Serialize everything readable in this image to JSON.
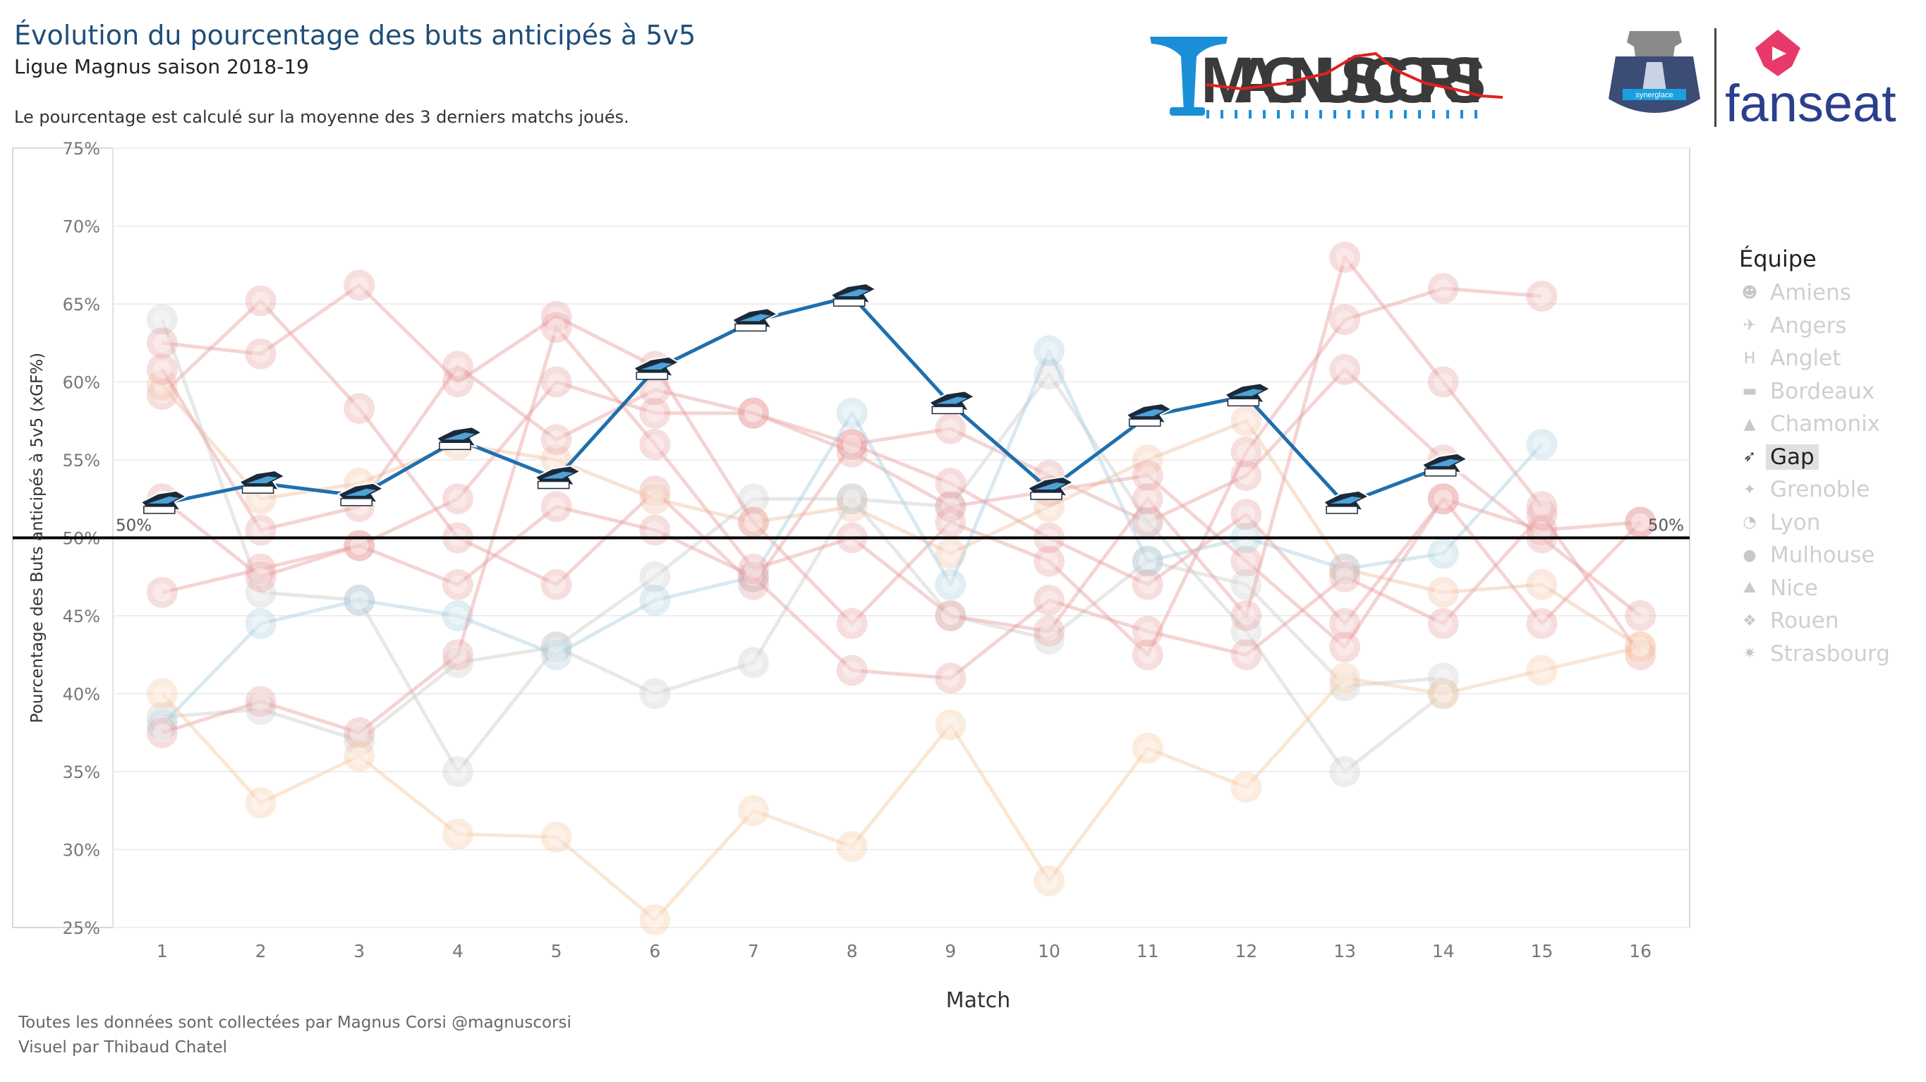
{
  "header": {
    "title": "Évolution du pourcentage des buts anticipés à 5v5",
    "subtitle": "Ligue Magnus saison 2018-19",
    "description": "Le pourcentage est calculé sur la moyenne des 3 derniers matchs joués."
  },
  "footer": {
    "line1": "Toutes les données sont collectées par Magnus Corsi @magnuscorsi",
    "line2": "Visuel par Thibaud Chatel"
  },
  "logos": {
    "magnus_corsi": "MAGNUSCORSI",
    "hockey_sub": "synerglace",
    "fanseat": "fanseat"
  },
  "legend": {
    "title": "Équipe",
    "items": [
      {
        "label": "Amiens",
        "icon": "amiens-icon",
        "active": false
      },
      {
        "label": "Angers",
        "icon": "angers-icon",
        "active": false
      },
      {
        "label": "Anglet",
        "icon": "anglet-icon",
        "active": false
      },
      {
        "label": "Bordeaux",
        "icon": "bordeaux-icon",
        "active": false
      },
      {
        "label": "Chamonix",
        "icon": "chamonix-icon",
        "active": false
      },
      {
        "label": "Gap",
        "icon": "gap-icon",
        "active": true
      },
      {
        "label": "Grenoble",
        "icon": "grenoble-icon",
        "active": false
      },
      {
        "label": "Lyon",
        "icon": "lyon-icon",
        "active": false
      },
      {
        "label": "Mulhouse",
        "icon": "mulhouse-icon",
        "active": false
      },
      {
        "label": "Nice",
        "icon": "nice-icon",
        "active": false
      },
      {
        "label": "Rouen",
        "icon": "rouen-icon",
        "active": false
      },
      {
        "label": "Strasbourg",
        "icon": "strasbourg-icon",
        "active": false
      }
    ]
  },
  "chart_data": {
    "type": "line",
    "xlabel": "Match",
    "ylabel": "Pourcentage des Buts anticipés à 5v5 (xGF%)",
    "x": [
      1,
      2,
      3,
      4,
      5,
      6,
      7,
      8,
      9,
      10,
      11,
      12,
      13,
      14,
      15,
      16
    ],
    "ylim": [
      25,
      75
    ],
    "yticks": [
      "25%",
      "30%",
      "35%",
      "40%",
      "45%",
      "50%",
      "55%",
      "60%",
      "65%",
      "70%",
      "75%"
    ],
    "reference_line": {
      "value": 50,
      "label_left": "50%",
      "label_right": "50%"
    },
    "grid": true,
    "highlight": "Gap",
    "series": [
      {
        "name": "Gap",
        "color": "#1f6fad",
        "values": [
          52.2,
          53.5,
          52.7,
          56.3,
          53.8,
          60.8,
          63.9,
          65.5,
          58.6,
          53.1,
          57.8,
          59.1,
          52.2,
          54.6,
          null,
          null
        ]
      },
      {
        "name": "Amiens",
        "color": "#e8a0a0",
        "values": [
          59.2,
          65.2,
          58.3,
          50.0,
          47.0,
          53.0,
          47.0,
          56.0,
          57.0,
          54.0,
          51.0,
          54.0,
          60.8,
          55.0,
          50.0,
          45.0
        ]
      },
      {
        "name": "Angers",
        "color": "#f0c0a0",
        "values": [
          59.8,
          52.5,
          53.5,
          56.0,
          55.0,
          52.5,
          51.0,
          52.0,
          49.0,
          52.0,
          55.0,
          57.5,
          48.0,
          46.5,
          47.0,
          43.0
        ]
      },
      {
        "name": "Anglet",
        "color": "#cccccc",
        "values": [
          64.0,
          46.5,
          46.0,
          35.0,
          43.0,
          47.5,
          52.5,
          52.5,
          52.0,
          60.5,
          51.0,
          44.0,
          35.0,
          40.0,
          null,
          null
        ]
      },
      {
        "name": "Bordeaux",
        "color": "#e8a0a0",
        "values": [
          46.5,
          48.0,
          49.5,
          52.5,
          60.0,
          58.0,
          58.0,
          55.5,
          52.0,
          53.0,
          54.0,
          48.5,
          43.0,
          52.5,
          50.5,
          51.0
        ]
      },
      {
        "name": "Chamonix",
        "color": "#cccccc",
        "values": [
          38.5,
          39.0,
          37.0,
          42.0,
          43.0,
          40.0,
          42.0,
          52.5,
          45.0,
          43.5,
          48.5,
          47.0,
          40.5,
          41.0,
          null,
          null
        ]
      },
      {
        "name": "Grenoble",
        "color": "#e8a0a0",
        "values": [
          62.5,
          61.8,
          66.2,
          60.0,
          64.2,
          61.0,
          51.0,
          44.5,
          51.0,
          48.5,
          42.5,
          55.5,
          64.0,
          66.0,
          65.5,
          null
        ]
      },
      {
        "name": "Lyon",
        "color": "#a8cfe0",
        "values": [
          38.0,
          44.5,
          46.0,
          45.0,
          42.5,
          46.0,
          47.5,
          58.0,
          47.0,
          62.0,
          48.5,
          50.0,
          48.0,
          49.0,
          56.0,
          null
        ]
      },
      {
        "name": "Mulhouse",
        "color": "#e8a0a0",
        "values": [
          60.8,
          50.5,
          52.0,
          61.0,
          56.3,
          59.5,
          58.0,
          56.0,
          53.5,
          50.0,
          47.0,
          51.5,
          44.5,
          52.5,
          44.5,
          51.0
        ]
      },
      {
        "name": "Nice",
        "color": "#e8a0a0",
        "values": [
          52.5,
          47.5,
          49.5,
          47.0,
          52.0,
          50.5,
          47.5,
          41.5,
          41.0,
          46.0,
          44.0,
          42.5,
          47.5,
          44.5,
          51.5,
          42.5
        ]
      },
      {
        "name": "Rouen",
        "color": "#e8a0a0",
        "values": [
          37.5,
          39.5,
          37.5,
          42.5,
          63.5,
          56.0,
          48.0,
          50.0,
          45.0,
          44.0,
          52.5,
          45.0,
          68.0,
          60.0,
          52.0,
          null
        ]
      },
      {
        "name": "Strasbourg",
        "color": "#f5c9a0",
        "values": [
          40.0,
          33.0,
          36.0,
          31.0,
          30.8,
          25.5,
          32.5,
          30.2,
          38.0,
          28.0,
          36.5,
          34.0,
          41.0,
          40.0,
          41.5,
          43.0
        ]
      }
    ]
  }
}
